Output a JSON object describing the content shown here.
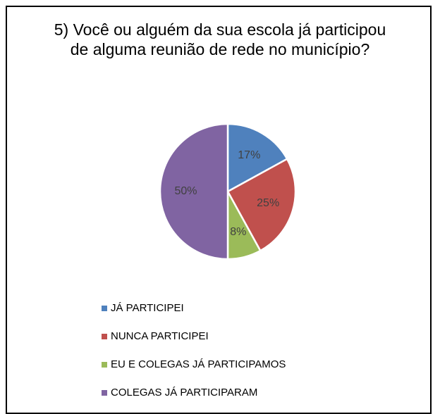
{
  "chart_data": {
    "type": "pie",
    "title": "5) Você ou alguém da sua escola já participou de alguma reunião de rede no município?",
    "categories": [
      "JÁ PARTICIPEI",
      "NUNCA PARTICIPEI",
      "EU E COLEGAS JÁ PARTICIPAMOS",
      "COLEGAS JÁ PARTICIPARAM"
    ],
    "values": [
      17,
      25,
      8,
      50
    ],
    "value_labels": [
      "17%",
      "25%",
      "8%",
      "50%"
    ],
    "colors": [
      "#4f81bd",
      "#c0504d",
      "#9bbb59",
      "#8064a2"
    ],
    "legend": "bottom"
  }
}
